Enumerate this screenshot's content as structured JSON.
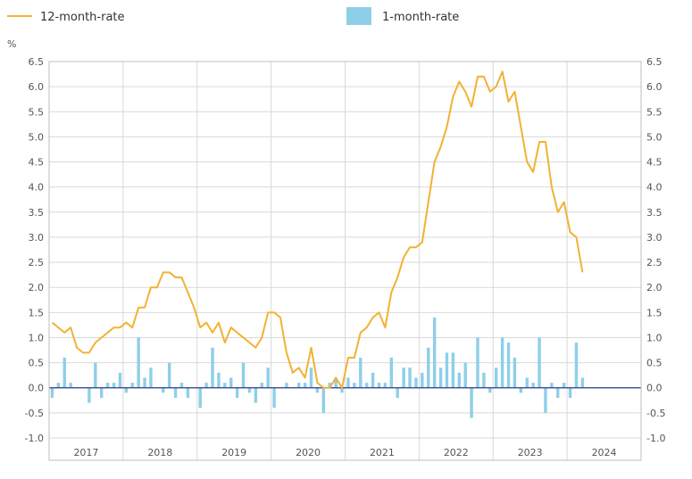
{
  "chart_data": {
    "type": "bar+line",
    "legend": {
      "placement": "top",
      "line_label": "12-month-rate",
      "bar_label": "1-month-rate"
    },
    "ylabel": "%",
    "ylim": [
      -1.0,
      6.5
    ],
    "yticks": [
      "-1.0",
      "-0.5",
      "0.0",
      "0.5",
      "1.0",
      "1.5",
      "2.0",
      "2.5",
      "3.0",
      "3.5",
      "4.0",
      "4.5",
      "5.0",
      "5.5",
      "6.0",
      "6.5"
    ],
    "grid": true,
    "x_start": "2017-01",
    "years": [
      "2017",
      "2018",
      "2019",
      "2020",
      "2021",
      "2022",
      "2023",
      "2024"
    ],
    "colors": {
      "line": "#f2b233",
      "bars": "#8ecfe8",
      "zero_line": "#2b3a8c"
    },
    "series": [
      {
        "name": "12-month-rate",
        "type": "line",
        "values": [
          1.3,
          1.2,
          1.1,
          1.2,
          0.8,
          0.7,
          0.7,
          0.9,
          1.0,
          1.1,
          1.2,
          1.2,
          1.3,
          1.2,
          1.6,
          1.6,
          2.0,
          2.0,
          2.3,
          2.3,
          2.2,
          2.2,
          1.9,
          1.6,
          1.2,
          1.3,
          1.1,
          1.3,
          0.9,
          1.2,
          1.1,
          1.0,
          0.9,
          0.8,
          1.0,
          1.5,
          1.5,
          1.4,
          0.7,
          0.3,
          0.4,
          0.2,
          0.8,
          0.1,
          0.0,
          0.0,
          0.2,
          0.0,
          0.6,
          0.6,
          1.1,
          1.2,
          1.4,
          1.5,
          1.2,
          1.9,
          2.2,
          2.6,
          2.8,
          2.8,
          2.9,
          3.7,
          4.5,
          4.8,
          5.2,
          5.8,
          6.1,
          5.9,
          5.6,
          6.2,
          6.2,
          5.9,
          6.0,
          6.3,
          5.7,
          5.9,
          5.2,
          4.5,
          4.3,
          4.9,
          4.9,
          4.0,
          3.5,
          3.7,
          3.1,
          3.0,
          2.3
        ]
      },
      {
        "name": "1-month-rate",
        "type": "bar",
        "values": [
          -0.2,
          0.1,
          0.6,
          0.1,
          0.0,
          0.0,
          -0.3,
          0.5,
          -0.2,
          0.1,
          0.1,
          0.3,
          -0.1,
          0.1,
          1.0,
          0.2,
          0.4,
          0.0,
          -0.1,
          0.5,
          -0.2,
          0.1,
          -0.2,
          0.0,
          -0.4,
          0.1,
          0.8,
          0.3,
          0.1,
          0.2,
          -0.2,
          0.5,
          -0.1,
          -0.3,
          0.1,
          0.4,
          -0.4,
          0.0,
          0.1,
          0.0,
          0.1,
          0.1,
          0.4,
          -0.1,
          -0.5,
          0.1,
          0.2,
          -0.1,
          0.2,
          0.1,
          0.6,
          0.1,
          0.3,
          0.1,
          0.1,
          0.6,
          -0.2,
          0.4,
          0.4,
          0.2,
          0.3,
          0.8,
          1.4,
          0.4,
          0.7,
          0.7,
          0.3,
          0.5,
          -0.6,
          1.0,
          0.3,
          -0.1,
          0.4,
          1.0,
          0.9,
          0.6,
          -0.1,
          0.2,
          0.1,
          1.0,
          -0.5,
          0.1,
          -0.2,
          0.1,
          -0.2,
          0.9,
          0.2
        ]
      }
    ]
  }
}
